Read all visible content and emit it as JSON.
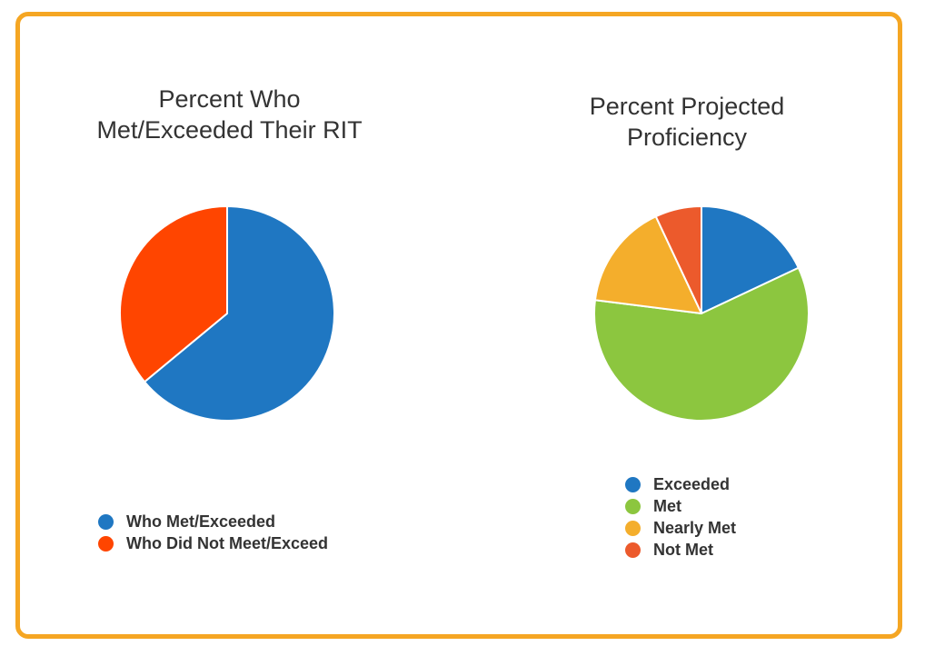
{
  "chart_data": [
    {
      "type": "pie",
      "title": "Percent Who Met/Exceeded Their RIT",
      "categories": [
        "Who Met/Exceeded",
        "Who Did Not Meet/Exceed"
      ],
      "values": [
        64,
        36
      ],
      "colors": [
        "#1f77c2",
        "#ff4500"
      ],
      "legend_position": "bottom"
    },
    {
      "type": "pie",
      "title": "Percent Projected Proficiency",
      "categories": [
        "Exceeded",
        "Met",
        "Nearly Met",
        "Not Met"
      ],
      "values": [
        18,
        59,
        16,
        7
      ],
      "colors": [
        "#1f77c2",
        "#8cc63f",
        "#f4ae2c",
        "#ec5a2c"
      ],
      "legend_position": "bottom"
    }
  ],
  "theme": {
    "frame_color": "#f5a623",
    "title_color": "#333333"
  }
}
